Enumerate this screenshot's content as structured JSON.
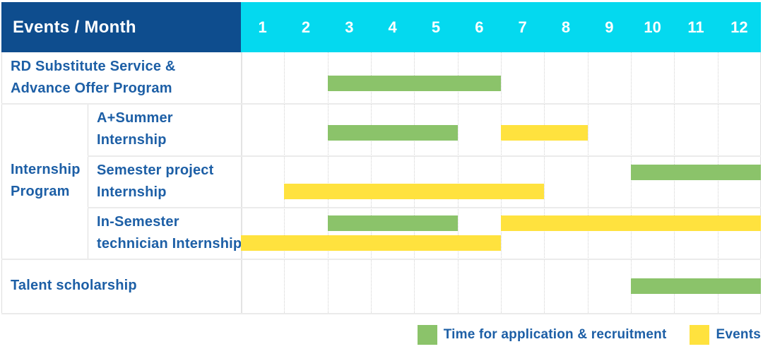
{
  "header": {
    "corner_label": "Events / Month",
    "months": [
      "1",
      "2",
      "3",
      "4",
      "5",
      "6",
      "7",
      "8",
      "9",
      "10",
      "11",
      "12"
    ]
  },
  "colors": {
    "header_navy": "#0E4D8E",
    "header_cyan": "#04D9EF",
    "green": "#8BC36A",
    "yellow": "#FFE23E",
    "label_text": "#1D5FA6",
    "header_text": "#FFFFFF"
  },
  "chart_data": {
    "type": "table",
    "subtype": "gantt",
    "x_unit": "month",
    "x_range": [
      1,
      12
    ],
    "columns": [
      "1",
      "2",
      "3",
      "4",
      "5",
      "6",
      "7",
      "8",
      "9",
      "10",
      "11",
      "12"
    ],
    "grid": true,
    "legend_position": "bottom-right",
    "rows": [
      {
        "group": "",
        "label_lines": [
          "RD Substitute Service &",
          "Advance Offer Program"
        ],
        "bars": [
          {
            "series": "Time for application & recruitment",
            "color": "green",
            "start_month": 3,
            "end_month": 6,
            "track": "top"
          }
        ]
      },
      {
        "group": "Internship Program",
        "label_lines": [
          "A+Summer",
          "Internship"
        ],
        "bars": [
          {
            "series": "Time for application & recruitment",
            "color": "green",
            "start_month": 3,
            "end_month": 5,
            "track": "top"
          },
          {
            "series": "Events",
            "color": "yellow",
            "start_month": 7,
            "end_month": 8,
            "track": "top"
          }
        ]
      },
      {
        "group": "Internship Program",
        "label_lines": [
          "Semester project",
          "Internship"
        ],
        "bars": [
          {
            "series": "Time for application & recruitment",
            "color": "green",
            "start_month": 10,
            "end_month": 12,
            "track": "top"
          },
          {
            "series": "Events",
            "color": "yellow",
            "start_month": 2,
            "end_month": 7,
            "track": "bottom"
          }
        ]
      },
      {
        "group": "Internship Program",
        "label_lines": [
          "In-Semester",
          "technician Internship"
        ],
        "bars": [
          {
            "series": "Time for application & recruitment",
            "color": "green",
            "start_month": 3,
            "end_month": 5,
            "track": "top"
          },
          {
            "series": "Events",
            "color": "yellow",
            "start_month": 7,
            "end_month": 12,
            "track": "top"
          },
          {
            "series": "Events",
            "color": "yellow",
            "start_month": 1,
            "end_month": 6,
            "track": "bottom"
          }
        ]
      },
      {
        "group": "",
        "label_lines": [
          "Talent scholarship"
        ],
        "bars": [
          {
            "series": "Time for application & recruitment",
            "color": "green",
            "start_month": 10,
            "end_month": 12,
            "track": "top"
          }
        ]
      }
    ],
    "legend": [
      {
        "color": "green",
        "label": "Time for application & recruitment"
      },
      {
        "color": "yellow",
        "label": "Events"
      }
    ]
  }
}
